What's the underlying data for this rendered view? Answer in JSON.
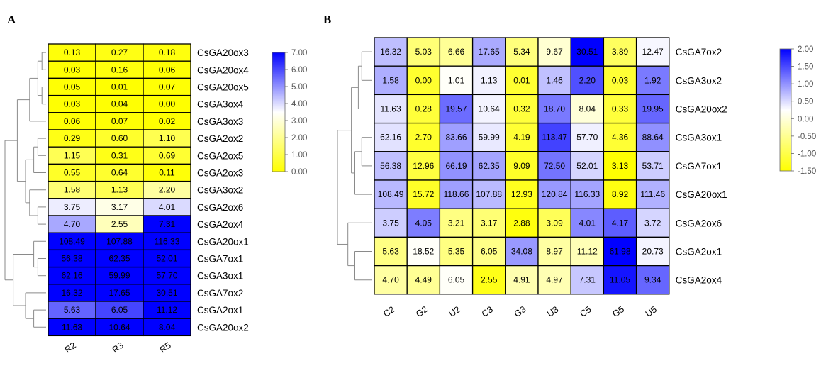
{
  "chart_data": [
    {
      "type": "heatmap",
      "panel": "A",
      "columns": [
        "R2",
        "R3",
        "R5"
      ],
      "rows": [
        "CsGA20ox3",
        "CsGA20ox4",
        "CsGA20ox5",
        "CsGA3ox4",
        "CsGA3ox3",
        "CsGA2ox2",
        "CsGA2ox5",
        "CsGA2ox3",
        "CsGA3ox2",
        "CsGA2ox6",
        "CsGA2ox4",
        "CsGA20ox1",
        "CsGA7ox1",
        "CsGA3ox1",
        "CsGA7ox2",
        "CsGA2ox1",
        "CsGA20ox2"
      ],
      "values": [
        [
          "0.13",
          "0.27",
          "0.18"
        ],
        [
          "0.03",
          "0.16",
          "0.06"
        ],
        [
          "0.05",
          "0.01",
          "0.07"
        ],
        [
          "0.03",
          "0.04",
          "0.00"
        ],
        [
          "0.06",
          "0.07",
          "0.02"
        ],
        [
          "0.29",
          "0.60",
          "1.10"
        ],
        [
          "1.15",
          "0.31",
          "0.69"
        ],
        [
          "0.55",
          "0.64",
          "0.11"
        ],
        [
          "1.58",
          "1.13",
          "2.20"
        ],
        [
          "3.75",
          "3.17",
          "4.01"
        ],
        [
          "4.70",
          "2.55",
          "7.31"
        ],
        [
          "108.49",
          "107.88",
          "116.33"
        ],
        [
          "56.38",
          "62.35",
          "52.01"
        ],
        [
          "62.16",
          "59.99",
          "57.70"
        ],
        [
          "16.32",
          "17.65",
          "30.51"
        ],
        [
          "5.63",
          "6.05",
          "11.12"
        ],
        [
          "11.63",
          "10.64",
          "8.04"
        ]
      ],
      "color_scale": {
        "type": "linear",
        "range": [
          0,
          7
        ],
        "colors": [
          "#ffff00",
          "#ffffff",
          "#0000ff"
        ],
        "ticks": [
          "7.00",
          "6.00",
          "5.00",
          "4.00",
          "3.00",
          "2.00",
          "1.00",
          "0.00"
        ]
      },
      "dendrogram": "left"
    },
    {
      "type": "heatmap",
      "panel": "B",
      "columns": [
        "C2",
        "G2",
        "U2",
        "C3",
        "G3",
        "U3",
        "C5",
        "G5",
        "U5"
      ],
      "rows": [
        "CsGA7ox2",
        "CsGA3ox2",
        "CsGA20ox2",
        "CsGA3ox1",
        "CsGA7ox1",
        "CsGA20ox1",
        "CsGA2ox6",
        "CsGA2ox1",
        "CsGA2ox4"
      ],
      "values": [
        [
          "16.32",
          "5.03",
          "6.66",
          "17.65",
          "5.34",
          "9.67",
          "30.51",
          "3.89",
          "12.47"
        ],
        [
          "1.58",
          "0.00",
          "1.01",
          "1.13",
          "0.01",
          "1.46",
          "2.20",
          "0.03",
          "1.92"
        ],
        [
          "11.63",
          "0.28",
          "19.57",
          "10.64",
          "0.32",
          "18.70",
          "8.04",
          "0.33",
          "19.95"
        ],
        [
          "62.16",
          "2.70",
          "83.66",
          "59.99",
          "4.19",
          "113.47",
          "57.70",
          "4.36",
          "88.64"
        ],
        [
          "56.38",
          "12.96",
          "66.19",
          "62.35",
          "9.09",
          "72.50",
          "52.01",
          "3.13",
          "53.71"
        ],
        [
          "108.49",
          "15.72",
          "118.66",
          "107.88",
          "12.93",
          "120.84",
          "116.33",
          "8.92",
          "111.46"
        ],
        [
          "3.75",
          "4.05",
          "3.21",
          "3.17",
          "2.88",
          "3.09",
          "4.01",
          "4.17",
          "3.72"
        ],
        [
          "5.63",
          "18.52",
          "5.35",
          "6.05",
          "34.08",
          "8.97",
          "11.12",
          "61.98",
          "20.73"
        ],
        [
          "4.70",
          "4.49",
          "6.05",
          "2.55",
          "4.91",
          "4.97",
          "7.31",
          "11.05",
          "9.34"
        ]
      ],
      "color_scale": {
        "type": "row-zscore",
        "range": [
          -1.5,
          2
        ],
        "colors": [
          "#ffff00",
          "#ffffff",
          "#0000ff"
        ],
        "ticks": [
          "2.00",
          "1.50",
          "1.00",
          "0.50",
          "0.00",
          "-0.50",
          "-1.00",
          "-1.50"
        ]
      },
      "dendrogram": "left"
    }
  ]
}
